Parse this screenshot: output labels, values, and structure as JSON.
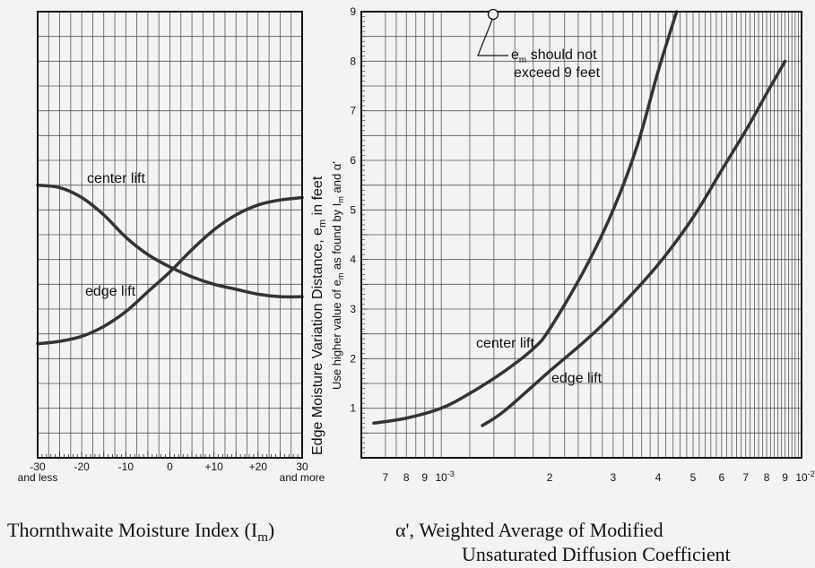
{
  "chart_data": [
    {
      "type": "line",
      "xlabel": "Thornthwaite Moisture Index (I",
      "xlabel_sub": "m",
      "xlabel_suffix": ")",
      "xlim": [
        -30,
        30
      ],
      "x_ticks": [
        {
          "value": -30,
          "label": "-30",
          "sub": "and less"
        },
        {
          "value": -20,
          "label": "-20"
        },
        {
          "value": -10,
          "label": "-10"
        },
        {
          "value": 0,
          "label": "0"
        },
        {
          "value": 10,
          "label": "+10"
        },
        {
          "value": 20,
          "label": "+20"
        },
        {
          "value": 30,
          "label": "30",
          "sub": "and more"
        }
      ],
      "ylim": [
        0,
        9
      ],
      "grid": true,
      "series": [
        {
          "name": "center lift",
          "x": [
            -30,
            -25,
            -20,
            -15,
            -10,
            -5,
            0,
            5,
            10,
            15,
            20,
            25,
            30
          ],
          "y": [
            5.5,
            5.45,
            5.25,
            4.9,
            4.45,
            4.1,
            3.85,
            3.65,
            3.5,
            3.4,
            3.3,
            3.25,
            3.25
          ]
        },
        {
          "name": "edge lift",
          "x": [
            -30,
            -25,
            -20,
            -15,
            -10,
            -5,
            0,
            5,
            10,
            15,
            20,
            25,
            30
          ],
          "y": [
            2.3,
            2.35,
            2.45,
            2.65,
            2.95,
            3.35,
            3.75,
            4.2,
            4.6,
            4.9,
            5.1,
            5.2,
            5.25
          ]
        }
      ]
    },
    {
      "type": "line",
      "ylabel": "Edge Moisture Variation Distance, e",
      "ylabel_sub": "m",
      "ylabel_suffix": " in feet",
      "ylabel2": "Use higher value of e",
      "ylabel2_sub1": "m",
      "ylabel2_mid": "  as found by I",
      "ylabel2_sub2": "m",
      "ylabel2_suffix": " and  α'",
      "ylim": [
        0,
        9
      ],
      "y_ticks": [
        "1",
        "2",
        "3",
        "4",
        "5",
        "6",
        "7",
        "8",
        "9"
      ],
      "xlabel_line1": "α', Weighted Average of Modified",
      "xlabel_line2": "Unsaturated Diffusion Coefficient",
      "x_scale": "log",
      "xlim": [
        0.0006,
        0.01
      ],
      "x_ticks": [
        {
          "value": 0.0007,
          "label": "7"
        },
        {
          "value": 0.0008,
          "label": "8"
        },
        {
          "value": 0.0009,
          "label": "9"
        },
        {
          "value": 0.001,
          "label": "10",
          "sup": "-3"
        },
        {
          "value": 0.002,
          "label": "2"
        },
        {
          "value": 0.003,
          "label": "3"
        },
        {
          "value": 0.004,
          "label": "4"
        },
        {
          "value": 0.005,
          "label": "5"
        },
        {
          "value": 0.006,
          "label": "6"
        },
        {
          "value": 0.007,
          "label": "7"
        },
        {
          "value": 0.008,
          "label": "8"
        },
        {
          "value": 0.009,
          "label": "9"
        },
        {
          "value": 0.01,
          "label": "10",
          "sup": "-2"
        }
      ],
      "grid": true,
      "annotation": {
        "line1": "e",
        "line1_sub": "m",
        "line1_suffix": " should not",
        "line2": "exceed 9 feet",
        "x": 0.0015,
        "y": 9
      },
      "series": [
        {
          "name": "center lift",
          "x": [
            0.00065,
            0.0008,
            0.001,
            0.0012,
            0.0015,
            0.0018,
            0.002,
            0.0025,
            0.003,
            0.0035,
            0.004,
            0.0045
          ],
          "y": [
            0.7,
            0.8,
            1.0,
            1.3,
            1.75,
            2.2,
            2.6,
            3.8,
            5.0,
            6.3,
            7.8,
            9.0
          ]
        },
        {
          "name": "edge lift",
          "x": [
            0.0013,
            0.0015,
            0.002,
            0.0025,
            0.003,
            0.004,
            0.005,
            0.006,
            0.007,
            0.008,
            0.009
          ],
          "y": [
            0.65,
            0.95,
            1.75,
            2.35,
            2.9,
            3.9,
            4.85,
            5.8,
            6.6,
            7.35,
            8.0
          ]
        }
      ]
    }
  ]
}
